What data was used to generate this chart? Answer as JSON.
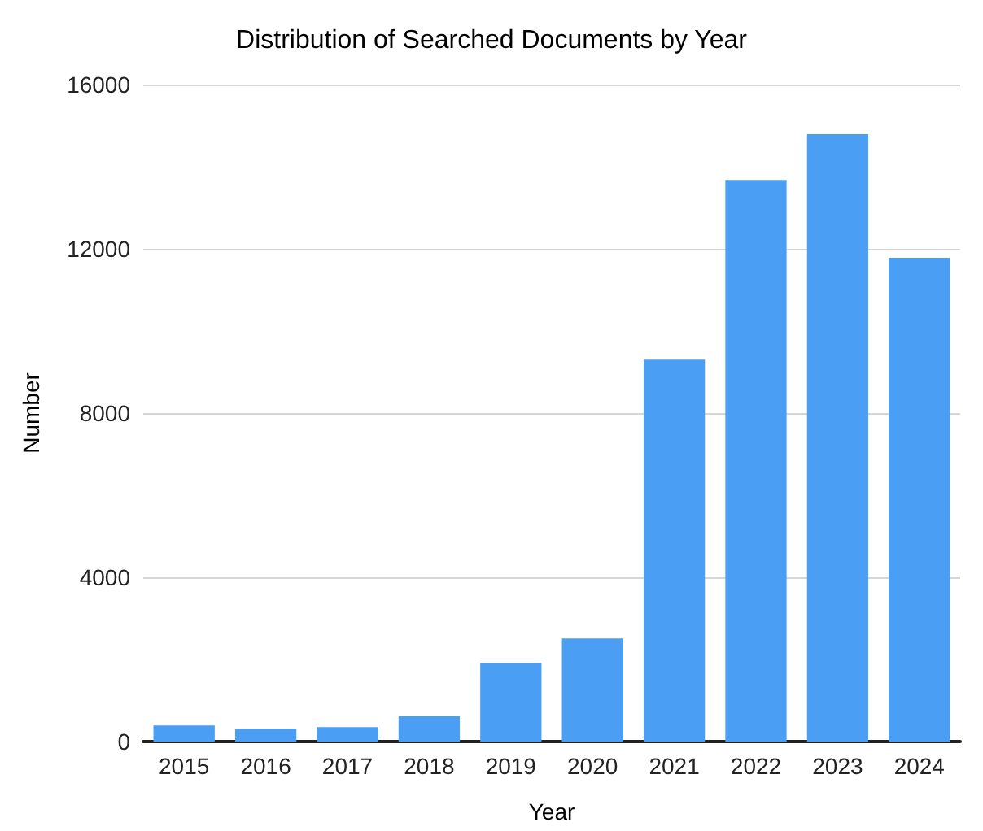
{
  "chart_data": {
    "type": "bar",
    "title": "Distribution of Searched Documents by Year",
    "xlabel": "Year",
    "ylabel": "Number",
    "categories": [
      "2015",
      "2016",
      "2017",
      "2018",
      "2019",
      "2020",
      "2021",
      "2022",
      "2023",
      "2024"
    ],
    "values": [
      390,
      310,
      350,
      620,
      1910,
      2510,
      9300,
      13680,
      14790,
      11780
    ],
    "color": "#4a9ff5",
    "ylim": [
      0,
      16000
    ],
    "yticks": [
      0,
      4000,
      8000,
      12000,
      16000
    ],
    "grid": "y"
  }
}
